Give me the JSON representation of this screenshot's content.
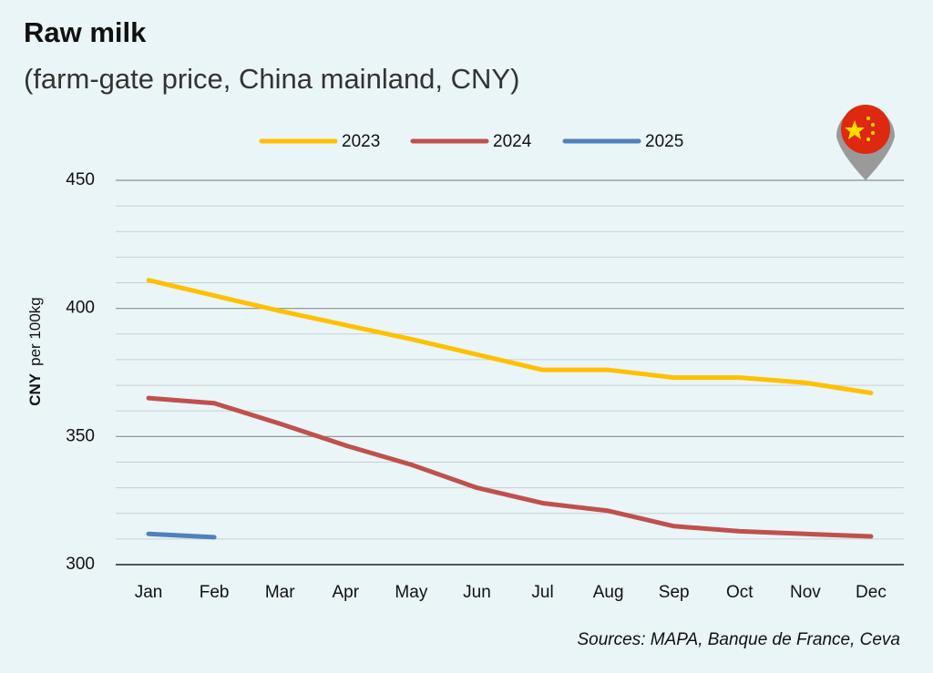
{
  "chart_data": {
    "type": "line",
    "title": "Raw milk",
    "subtitle": "(farm-gate price, China mainland, CNY)",
    "ylabel": [
      "CNY",
      "per 100kg"
    ],
    "source": "Sources: MAPA, Banque de France, Ceva",
    "categories": [
      "Jan",
      "Feb",
      "Mar",
      "Apr",
      "May",
      "Jun",
      "Jul",
      "Aug",
      "Sep",
      "Oct",
      "Nov",
      "Dec"
    ],
    "series": [
      {
        "name": "2023",
        "color": "#ffc000",
        "values": [
          411,
          405,
          399,
          393.5,
          388,
          382,
          376,
          376,
          373,
          373,
          371,
          367
        ]
      },
      {
        "name": "2024",
        "color": "#c0504d",
        "values": [
          365,
          363,
          355,
          346.5,
          339,
          330,
          324,
          321,
          315,
          313,
          312,
          311
        ]
      },
      {
        "name": "2025",
        "color": "#4f81bd",
        "values": [
          312,
          310.7,
          null,
          null,
          null,
          null,
          null,
          null,
          null,
          null,
          null,
          null
        ]
      }
    ],
    "ylim": [
      300,
      450
    ],
    "yticks": [
      300,
      350,
      400,
      450
    ],
    "yticks_minor": [
      310,
      320,
      330,
      340,
      360,
      370,
      380,
      390,
      410,
      420,
      430,
      440
    ],
    "grid": true,
    "legend": "top"
  }
}
